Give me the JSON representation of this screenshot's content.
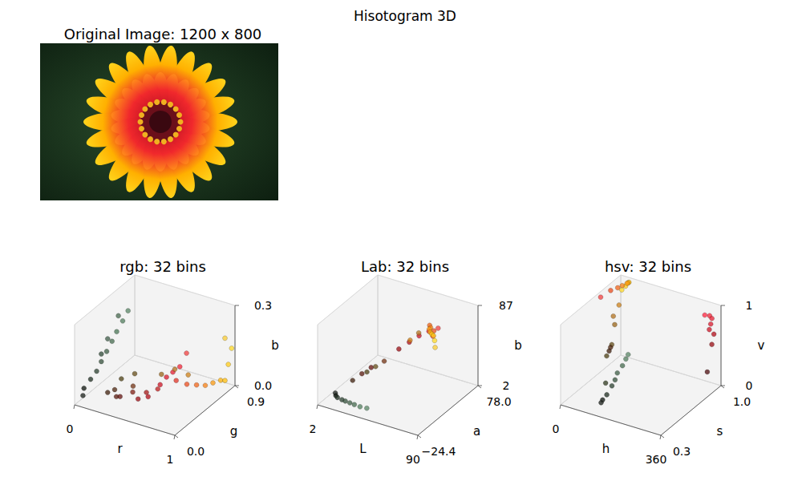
{
  "title": "Hisotogram 3D",
  "chart_data": [
    {
      "type": "image",
      "title": "Original Image: 1200 x 800"
    },
    {
      "type": "scatter3d",
      "title": "rgb: 32 bins",
      "grid": true,
      "xlabel": "r",
      "ylabel": "g",
      "zlabel": "b",
      "xlim": [
        0,
        1
      ],
      "ylim": [
        0,
        0.9
      ],
      "zlim": [
        0,
        0.3
      ],
      "xticks": [
        0,
        1
      ],
      "yticks": [
        {
          "value": 0,
          "label": "0.0"
        },
        0.9
      ],
      "zticks": [
        {
          "value": 0,
          "label": "0.0"
        },
        0.3
      ],
      "x": [
        0.05,
        0.04,
        0.08,
        0.1,
        0.12,
        0.14,
        0.16,
        0.18,
        0.2,
        0.22,
        0.13,
        0.1,
        0.17,
        0.25,
        0.3,
        0.35,
        0.4,
        0.45,
        0.5,
        0.3,
        0.4,
        0.6,
        0.65,
        0.7,
        0.75,
        0.8,
        0.85,
        0.9,
        0.95,
        0.88,
        0.92,
        0.95,
        0.95,
        0.97,
        0.98,
        0.99,
        1.0,
        1.0,
        1.0,
        0.98,
        0.8,
        0.7,
        0.6
      ],
      "y": [
        0.05,
        0.08,
        0.12,
        0.18,
        0.22,
        0.27,
        0.32,
        0.36,
        0.42,
        0.47,
        0.3,
        0.25,
        0.4,
        0.12,
        0.15,
        0.1,
        0.08,
        0.2,
        0.12,
        0.25,
        0.3,
        0.05,
        0.1,
        0.05,
        0.12,
        0.08,
        0.1,
        0.12,
        0.15,
        0.2,
        0.3,
        0.25,
        0.4,
        0.5,
        0.6,
        0.7,
        0.75,
        0.8,
        0.85,
        0.78,
        0.5,
        0.45,
        0.4
      ],
      "z": [
        0.03,
        0.05,
        0.08,
        0.1,
        0.13,
        0.16,
        0.19,
        0.22,
        0.25,
        0.28,
        0.2,
        0.15,
        0.27,
        0.05,
        0.06,
        0.05,
        0.06,
        0.08,
        0.08,
        0.08,
        0.1,
        0.08,
        0.1,
        0.1,
        0.12,
        0.15,
        0.18,
        0.2,
        0.22,
        0.15,
        0.12,
        0.25,
        0.1,
        0.08,
        0.07,
        0.06,
        0.05,
        0.1,
        0.15,
        0.2,
        0.1,
        0.12,
        0.1
      ],
      "colors": [
        "#1a1f1a",
        "#0d140e",
        "#1f2e22",
        "#2b4030",
        "#34503b",
        "#3d5e45",
        "#466b4f",
        "#4a7555",
        "#527d5e",
        "#5a8566",
        "#3f5c48",
        "#2f4a37",
        "#47684f",
        "#40200d",
        "#4d260f",
        "#5a1a0d",
        "#661410",
        "#733314",
        "#801f14",
        "#4d4014",
        "#664d1a",
        "#990d14",
        "#a61a1a",
        "#b30d1a",
        "#bf1f1f",
        "#cc1426",
        "#d91a2e",
        "#e61f33",
        "#f22638",
        "#e03326",
        "#eb4d1f",
        "#f24040",
        "#f2661a",
        "#f78014",
        "#fa9912",
        "#fcb30f",
        "#ffbf0d",
        "#ffcc1a",
        "#ffd926",
        "#facc33",
        "#cc801a",
        "#b3731f",
        "#99661a"
      ]
    },
    {
      "type": "scatter3d",
      "title": "Lab: 32 bins",
      "grid": true,
      "xlabel": "L",
      "ylabel": "a",
      "zlabel": "b",
      "xlim": [
        2,
        90
      ],
      "ylim": [
        -24.4,
        78
      ],
      "zlim": [
        2,
        87
      ],
      "xticks": [
        2,
        90
      ],
      "yticks": [
        {
          "value": -24.4,
          "label": "−24.4"
        },
        {
          "value": 78,
          "label": "78.0"
        }
      ],
      "zticks": [
        2,
        87
      ],
      "x": [
        5,
        8,
        12,
        18,
        22,
        27,
        32,
        38,
        45,
        15,
        18,
        22,
        25,
        30,
        35,
        35,
        40,
        45,
        50,
        52,
        55,
        58,
        50,
        55,
        62,
        68,
        72,
        78,
        82,
        85,
        88,
        90
      ],
      "y": [
        0,
        -5,
        -10,
        -14,
        -16,
        -18,
        -20,
        -22,
        -24,
        10,
        20,
        28,
        15,
        20,
        25,
        50,
        58,
        65,
        72,
        75,
        78,
        65,
        40,
        45,
        50,
        40,
        30,
        20,
        15,
        12,
        8,
        5
      ],
      "z": [
        3,
        4,
        6,
        8,
        9,
        10,
        11,
        12,
        14,
        15,
        18,
        22,
        25,
        30,
        35,
        35,
        40,
        45,
        48,
        42,
        50,
        55,
        55,
        62,
        70,
        75,
        80,
        84,
        86,
        87,
        85,
        80
      ],
      "colors": [
        "#1a1f1a",
        "#0d140e",
        "#1f2e22",
        "#2b4030",
        "#34503b",
        "#3d5e45",
        "#466b4f",
        "#527d5e",
        "#5a8566",
        "#40200d",
        "#5a1a0d",
        "#661410",
        "#4d4014",
        "#664d1a",
        "#733314",
        "#990d14",
        "#b30d1a",
        "#cc1426",
        "#e61f33",
        "#f22638",
        "#f24040",
        "#eb4d1f",
        "#cc801a",
        "#b3731f",
        "#f2661a",
        "#f78014",
        "#fa9912",
        "#fcb30f",
        "#ffbf0d",
        "#ffcc1a",
        "#ffd926",
        "#facc33"
      ]
    },
    {
      "type": "scatter3d",
      "title": "hsv: 32 bins",
      "grid": true,
      "xlabel": "h",
      "ylabel": "s",
      "zlabel": "v",
      "xlim": [
        0,
        360
      ],
      "ylim": [
        0.3,
        1
      ],
      "zlim": [
        0,
        1
      ],
      "xticks": [
        0,
        360
      ],
      "yticks": [
        0.3,
        {
          "value": 1,
          "label": "1.0"
        }
      ],
      "zticks": [
        0,
        1
      ],
      "x": [
        45,
        48,
        50,
        42,
        38,
        30,
        20,
        10,
        5,
        40,
        35,
        40,
        45,
        42,
        25,
        20,
        120,
        130,
        135,
        138,
        140,
        142,
        145,
        148,
        150,
        100,
        350,
        352,
        354,
        355,
        356,
        358,
        357,
        348
      ],
      "y": [
        0.95,
        0.9,
        0.85,
        0.95,
        0.95,
        0.92,
        0.9,
        0.85,
        0.75,
        0.85,
        0.8,
        0.8,
        0.75,
        0.7,
        0.8,
        0.8,
        0.4,
        0.35,
        0.4,
        0.45,
        0.48,
        0.5,
        0.55,
        0.58,
        0.6,
        0.5,
        0.9,
        0.92,
        0.9,
        0.88,
        0.93,
        0.9,
        0.85,
        0.85
      ],
      "z": [
        1.0,
        1.0,
        1.0,
        0.99,
        0.98,
        0.97,
        0.95,
        0.95,
        0.95,
        0.8,
        0.7,
        0.6,
        0.4,
        0.3,
        0.3,
        0.25,
        0.1,
        0.12,
        0.18,
        0.25,
        0.3,
        0.37,
        0.42,
        0.48,
        0.52,
        0.2,
        0.95,
        0.9,
        0.85,
        0.8,
        0.7,
        0.6,
        0.3,
        1.0
      ],
      "colors": [
        "#ffbf0d",
        "#ffcc1a",
        "#ffd926",
        "#fcb30f",
        "#fa9912",
        "#f78014",
        "#f2661a",
        "#eb4d1f",
        "#f24040",
        "#cc801a",
        "#b3731f",
        "#99661a",
        "#664d1a",
        "#4d4014",
        "#4d260f",
        "#40200d",
        "#0d140e",
        "#1a1f1a",
        "#1f2e22",
        "#2b4030",
        "#34503b",
        "#3d5e45",
        "#466b4f",
        "#527d5e",
        "#5a8566",
        "#2f3a1f",
        "#f22638",
        "#e61f33",
        "#d91a2e",
        "#cc1426",
        "#b30d1a",
        "#990d14",
        "#4d0d10",
        "#ff2640"
      ]
    }
  ]
}
